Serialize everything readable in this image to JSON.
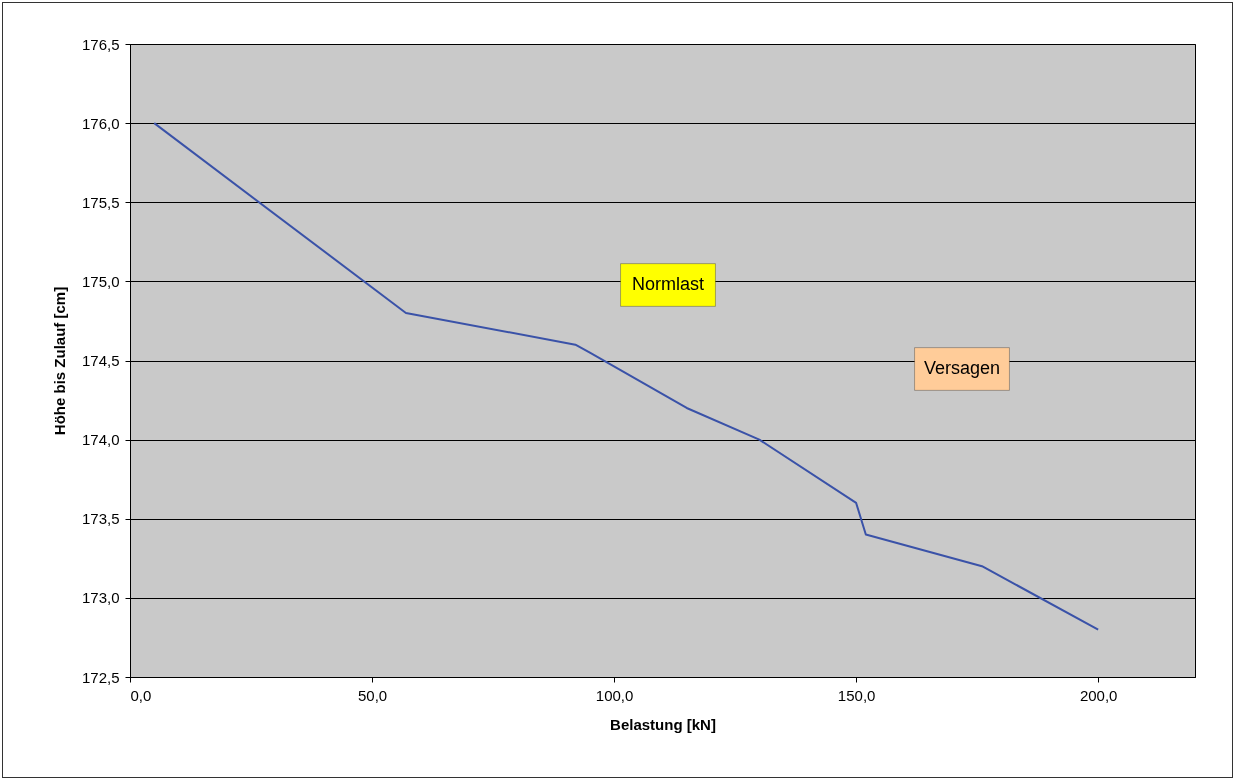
{
  "chart_data": {
    "type": "line",
    "xlabel": "Belastung [kN]",
    "ylabel": "Höhe bis Zulauf [cm]",
    "x": [
      5,
      57,
      92,
      95,
      115,
      130,
      150,
      152,
      176,
      200
    ],
    "series": [
      {
        "color": "#3a52a8",
        "values": [
          176.0,
          174.8,
          174.6,
          174.55,
          174.2,
          174.0,
          173.6,
          173.4,
          173.2,
          172.8
        ]
      }
    ],
    "xlim": [
      0,
      220
    ],
    "xticks": [
      {
        "value": 0,
        "label": "0,0"
      },
      {
        "value": 50,
        "label": "50,0"
      },
      {
        "value": 100,
        "label": "100,0"
      },
      {
        "value": 150,
        "label": "150,0"
      },
      {
        "value": 200,
        "label": "200,0"
      }
    ],
    "ylim": [
      172.5,
      176.5
    ],
    "yticks": [
      {
        "value": 172.5,
        "label": "172,5"
      },
      {
        "value": 173,
        "label": "173,0"
      },
      {
        "value": 173.5,
        "label": "173,5"
      },
      {
        "value": 174,
        "label": "174,0"
      },
      {
        "value": 174.5,
        "label": "174,5"
      },
      {
        "value": 175,
        "label": "175,0"
      },
      {
        "value": 175.5,
        "label": "175,5"
      },
      {
        "value": 176,
        "label": "176,0"
      },
      {
        "value": 176.5,
        "label": "176,5"
      }
    ],
    "grid": "y",
    "marker": "none",
    "line_style": "solid",
    "annotations": [
      "Normlast",
      "Versagen"
    ]
  }
}
